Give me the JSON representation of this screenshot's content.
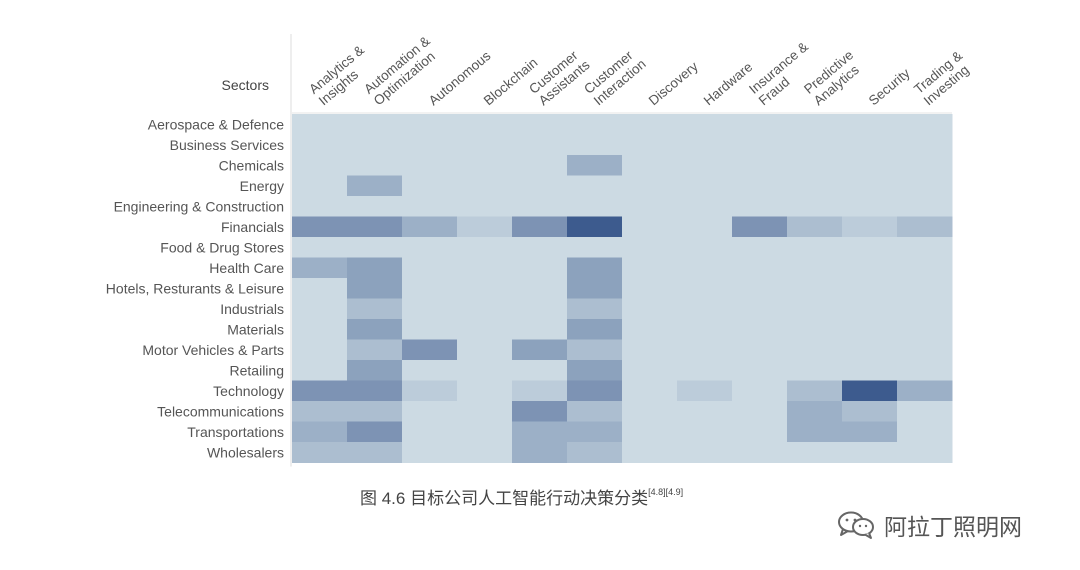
{
  "chart_data": {
    "type": "heatmap",
    "corner_label": "Sectors",
    "columns": [
      [
        "Analytics &",
        "Insights"
      ],
      [
        "Automation &",
        "Optimization"
      ],
      [
        "Autonomous"
      ],
      [
        "Blockchain"
      ],
      [
        "Customer",
        "Assistants"
      ],
      [
        "Customer",
        "Interaction"
      ],
      [
        "Discovery"
      ],
      [
        "Hardware"
      ],
      [
        "Insurance &",
        "Fraud"
      ],
      [
        "Predictive",
        "Analytics"
      ],
      [
        "Security"
      ],
      [
        "Trading &",
        "Investing"
      ]
    ],
    "rows": [
      "Aerospace & Defence",
      "Business Services",
      "Chemicals",
      "Energy",
      "Engineering & Construction",
      "Financials",
      "Food & Drug Stores",
      "Health Care",
      "Hotels, Resturants & Leisure",
      "Industrials",
      "Materials",
      "Motor Vehicles & Parts",
      "Retailing",
      "Technology",
      "Telecommunications",
      "Transportations",
      "Wholesalers"
    ],
    "values": [
      [
        0,
        0,
        0,
        0,
        0,
        0,
        0,
        0,
        0,
        0,
        0,
        0
      ],
      [
        0,
        0,
        0,
        0,
        0,
        0,
        0,
        0,
        0,
        0,
        0,
        0
      ],
      [
        0,
        0,
        0,
        0,
        0,
        3,
        0,
        0,
        0,
        0,
        0,
        0
      ],
      [
        0,
        3,
        0,
        0,
        0,
        0,
        0,
        0,
        0,
        0,
        0,
        0
      ],
      [
        0,
        0,
        0,
        0,
        0,
        0,
        0,
        0,
        0,
        0,
        0,
        0
      ],
      [
        5,
        5,
        3,
        1,
        5,
        9,
        0,
        0,
        5,
        2,
        1,
        2
      ],
      [
        0,
        0,
        0,
        0,
        0,
        0,
        0,
        0,
        0,
        0,
        0,
        0
      ],
      [
        3,
        4,
        0,
        0,
        0,
        4,
        0,
        0,
        0,
        0,
        0,
        0
      ],
      [
        0,
        4,
        0,
        0,
        0,
        4,
        0,
        0,
        0,
        0,
        0,
        0
      ],
      [
        0,
        2,
        0,
        0,
        0,
        2,
        0,
        0,
        0,
        0,
        0,
        0
      ],
      [
        0,
        4,
        0,
        0,
        0,
        4,
        0,
        0,
        0,
        0,
        0,
        0
      ],
      [
        0,
        2,
        5,
        0,
        4,
        2,
        0,
        0,
        0,
        0,
        0,
        0
      ],
      [
        0,
        4,
        0,
        0,
        0,
        4,
        0,
        0,
        0,
        0,
        0,
        0
      ],
      [
        5,
        5,
        1,
        0,
        1,
        5,
        0,
        1,
        0,
        2,
        9,
        3
      ],
      [
        2,
        2,
        0,
        0,
        5,
        2,
        0,
        0,
        0,
        3,
        2,
        0
      ],
      [
        3,
        5,
        0,
        0,
        3,
        3,
        0,
        0,
        0,
        3,
        3,
        0
      ],
      [
        2,
        2,
        0,
        0,
        3,
        2,
        0,
        0,
        0,
        0,
        0,
        0
      ]
    ],
    "color_low": "#ccdae3",
    "color_high": "#3d5b8e",
    "value_max": 9
  },
  "caption": {
    "text": "图 4.6 目标公司人工智能行动决策分类",
    "refs": "[4.8][4.9]"
  },
  "watermark": {
    "text": "阿拉丁照明网"
  }
}
